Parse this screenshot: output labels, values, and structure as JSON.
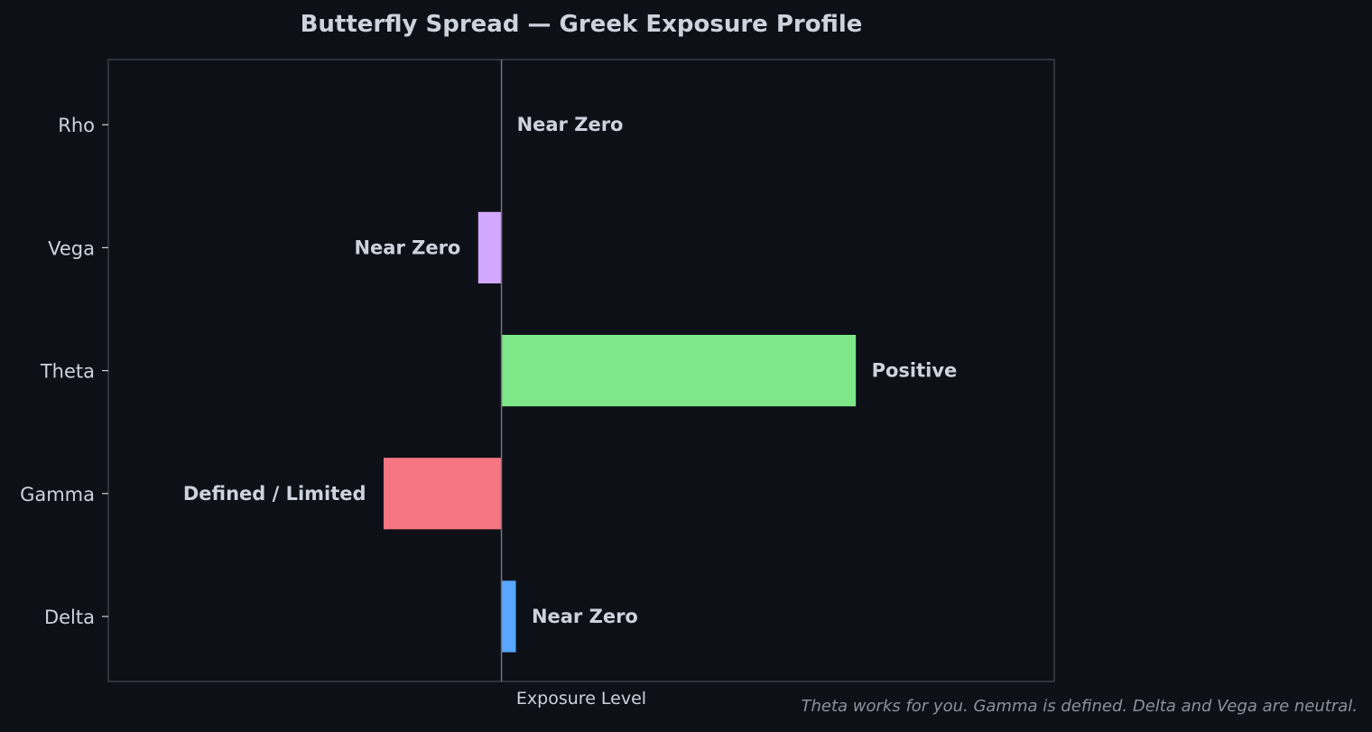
{
  "chart_data": {
    "type": "bar",
    "orientation": "horizontal",
    "title": "Butterfly Spread — Greek Exposure Profile",
    "xlabel": "Exposure Level",
    "ylabel": "",
    "categories": [
      "Delta",
      "Gamma",
      "Theta",
      "Vega",
      "Rho"
    ],
    "values": [
      0.05,
      -0.4,
      1.2,
      -0.08,
      0
    ],
    "value_labels": [
      "Near Zero",
      "Defined / Limited",
      "Positive",
      "Near Zero",
      "Near Zero"
    ],
    "bar_colors": [
      "#58a6ff",
      "#f87683",
      "#7ee787",
      "#d2a8ff",
      "#d2a8ff"
    ],
    "xlim": [
      -1.33,
      1.87
    ],
    "grid": false,
    "legend": "none",
    "zero_line": true
  },
  "footnote": "Theta works for you. Gamma is defined. Delta and Vega are neutral.",
  "colors": {
    "background": "#0d1017",
    "frame": "#3a3f47",
    "text": "#cdd3dc",
    "muted_text": "#8b929b",
    "zero_line": "#6e7681"
  }
}
